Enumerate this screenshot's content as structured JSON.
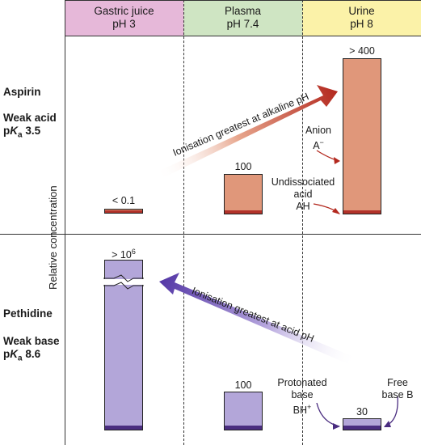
{
  "compartments": [
    {
      "name": "Gastric juice",
      "ph": "pH 3",
      "color": "#e6b8d9"
    },
    {
      "name": "Plasma",
      "ph": "pH 7.4",
      "color": "#cfe5c3"
    },
    {
      "name": "Urine",
      "ph": "pH 8",
      "color": "#fbf2a8"
    }
  ],
  "drugs": {
    "aspirin": {
      "name": "Aspirin",
      "type": "Weak acid",
      "pka_prefix": "p",
      "pka_k": "K",
      "pka_sub": "a",
      "pka_value": "3.5",
      "color": "#e0977a",
      "base_color": "#b2322a"
    },
    "pethidine": {
      "name": "Pethidine",
      "type": "Weak base",
      "pka_prefix": "p",
      "pka_k": "K",
      "pka_sub": "a",
      "pka_value": "8.6",
      "color": "#b3a6d9",
      "base_color": "#4a2d80"
    }
  },
  "bars": {
    "aspirin_gastric": "< 0.1",
    "aspirin_plasma": "100",
    "aspirin_urine": "> 400",
    "pethidine_gastric_main": "> 10",
    "pethidine_gastric_sup": "6",
    "pethidine_plasma": "100",
    "pethidine_urine": "30"
  },
  "y_axis_label": "Relative concentration",
  "arrows": {
    "acid": "Ionisation greatest at alkaline pH",
    "base": "Ionisation greatest at acid pH"
  },
  "annotations": {
    "anion_1": "Anion",
    "anion_2": "A",
    "anion_sup": "−",
    "undiss_1": "Undissociated",
    "undiss_2": "acid",
    "undiss_3": "AH",
    "prot_1": "Protonated",
    "prot_2": "base",
    "prot_3": "BH",
    "prot_sup": "+",
    "free_1": "Free",
    "free_2": "base B"
  }
}
